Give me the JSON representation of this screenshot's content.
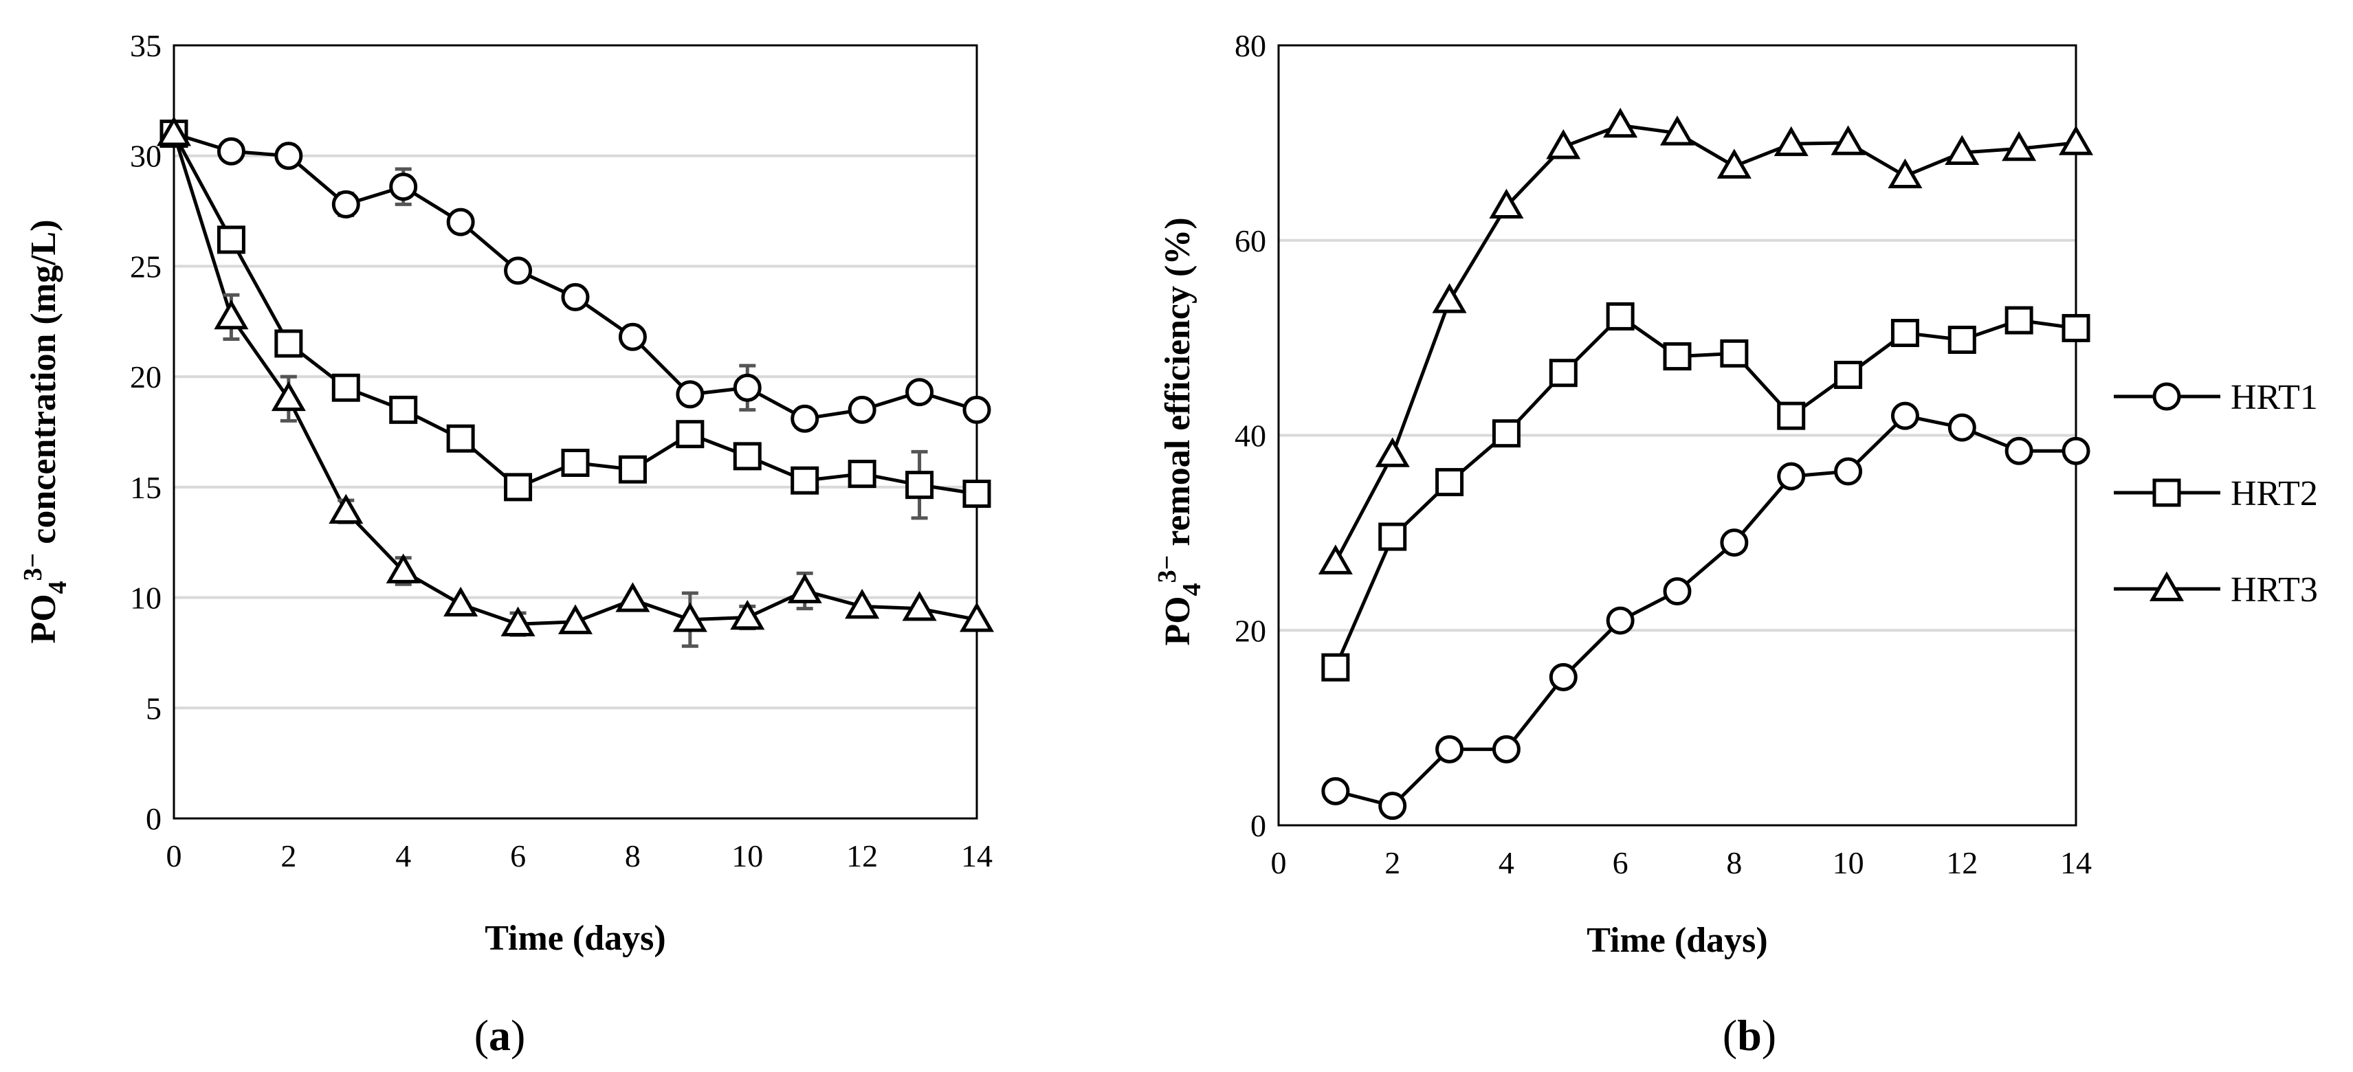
{
  "legend": [
    {
      "name": "HRT1",
      "marker": "circle"
    },
    {
      "name": "HRT2",
      "marker": "square"
    },
    {
      "name": "HRT3",
      "marker": "triangle"
    }
  ],
  "panels": [
    {
      "letter": "a",
      "open": "(",
      "close": ")"
    },
    {
      "letter": "b",
      "open": "(",
      "close": ")"
    }
  ],
  "chart_data": [
    {
      "type": "line",
      "panel": "(a)",
      "xlabel": "Time (days)",
      "ylabel_parts": {
        "base": "PO",
        "sub": "4",
        "sup": "3−",
        "rest": " concentration (mg/L)"
      },
      "xlim": [
        0,
        14
      ],
      "ylim": [
        0,
        35
      ],
      "xticks": [
        0,
        2,
        4,
        6,
        8,
        10,
        12,
        14
      ],
      "yticks": [
        0,
        5,
        10,
        15,
        20,
        25,
        30,
        35
      ],
      "grid": "horizontal",
      "series": [
        {
          "name": "HRT1",
          "marker": "circle",
          "x": [
            0,
            1,
            2,
            3,
            4,
            5,
            6,
            7,
            8,
            9,
            10,
            11,
            12,
            13,
            14
          ],
          "y": [
            31.0,
            30.2,
            30.0,
            27.8,
            28.6,
            27.0,
            24.8,
            23.6,
            21.8,
            19.2,
            19.5,
            18.1,
            18.5,
            19.3,
            18.5
          ],
          "err": [
            0,
            0,
            0,
            0.5,
            0.8,
            0,
            0,
            0,
            0,
            0.3,
            1.0,
            0,
            0,
            0,
            0
          ]
        },
        {
          "name": "HRT2",
          "marker": "square",
          "x": [
            0,
            1,
            2,
            3,
            4,
            5,
            6,
            7,
            8,
            9,
            10,
            11,
            12,
            13,
            14
          ],
          "y": [
            31.0,
            26.2,
            21.5,
            19.5,
            18.5,
            17.2,
            15.0,
            16.1,
            15.8,
            17.4,
            16.4,
            15.3,
            15.6,
            15.1,
            14.7
          ],
          "err": [
            0,
            0,
            0,
            0,
            0,
            0,
            0,
            0,
            0,
            0,
            0,
            0,
            0,
            1.5,
            0
          ]
        },
        {
          "name": "HRT3",
          "marker": "triangle",
          "x": [
            0,
            1,
            2,
            3,
            4,
            5,
            6,
            7,
            8,
            9,
            10,
            11,
            12,
            13,
            14
          ],
          "y": [
            31.0,
            22.7,
            19.0,
            13.9,
            11.2,
            9.7,
            8.8,
            8.9,
            9.9,
            9.0,
            9.1,
            10.3,
            9.6,
            9.5,
            9.0
          ],
          "err": [
            0,
            1.0,
            1.0,
            0.5,
            0.6,
            0,
            0.5,
            0,
            0,
            1.2,
            0.5,
            0.8,
            0,
            0,
            0
          ]
        }
      ]
    },
    {
      "type": "line",
      "panel": "(b)",
      "xlabel": "Time (days)",
      "ylabel_parts": {
        "base": "PO",
        "sub": "4",
        "sup": "3−",
        "rest": " remoal efficiency (%)"
      },
      "xlim": [
        0,
        14
      ],
      "ylim": [
        0,
        80
      ],
      "xticks": [
        0,
        2,
        4,
        6,
        8,
        10,
        12,
        14
      ],
      "yticks": [
        0,
        20,
        40,
        60,
        80
      ],
      "grid": "horizontal",
      "series": [
        {
          "name": "HRT1",
          "marker": "circle",
          "x": [
            1,
            2,
            3,
            4,
            5,
            6,
            7,
            8,
            9,
            10,
            11,
            12,
            13,
            14
          ],
          "y": [
            3.5,
            2.0,
            7.8,
            7.8,
            15.2,
            21.0,
            24.0,
            29.0,
            35.8,
            36.3,
            42.0,
            40.8,
            38.4,
            38.4
          ]
        },
        {
          "name": "HRT2",
          "marker": "square",
          "x": [
            1,
            2,
            3,
            4,
            5,
            6,
            7,
            8,
            9,
            10,
            11,
            12,
            13,
            14
          ],
          "y": [
            16.2,
            29.6,
            35.2,
            40.2,
            46.4,
            52.2,
            48.1,
            48.4,
            42.0,
            46.2,
            50.5,
            49.8,
            51.8,
            51.0
          ]
        },
        {
          "name": "HRT3",
          "marker": "triangle",
          "x": [
            1,
            2,
            3,
            4,
            5,
            6,
            7,
            8,
            9,
            10,
            11,
            12,
            13,
            14
          ],
          "y": [
            27.0,
            38.0,
            53.8,
            63.5,
            69.6,
            71.8,
            71.0,
            67.6,
            69.9,
            70.0,
            66.6,
            69.0,
            69.4,
            70.0
          ]
        }
      ]
    }
  ]
}
